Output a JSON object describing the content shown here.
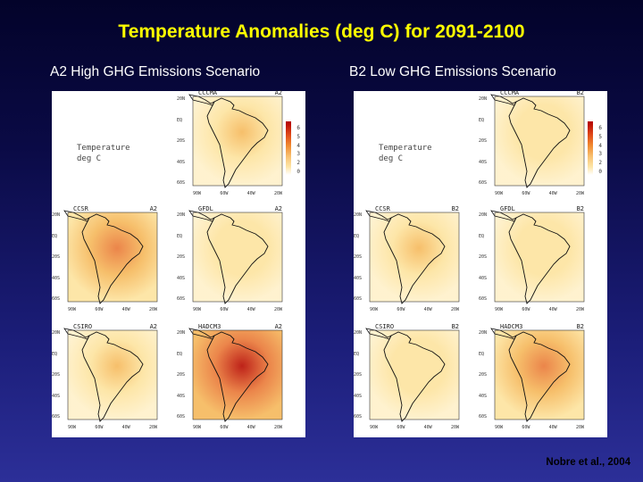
{
  "slide": {
    "title": "Temperature Anomalies (deg C) for 2091-2100",
    "citation": "Nobre et al., 2004"
  },
  "panels": [
    {
      "heading": "A2 High GHG Emissions Scenario",
      "legend_title": "Temperature",
      "legend_units": "deg C",
      "maps": [
        {
          "model": "CCCMA",
          "scenario": "A2",
          "warming": "moderate"
        },
        {
          "model": "CCSR",
          "scenario": "A2",
          "warming": "high"
        },
        {
          "model": "GFDL",
          "scenario": "A2",
          "warming": "low"
        },
        {
          "model": "CSIRO",
          "scenario": "A2",
          "warming": "moderate"
        },
        {
          "model": "HADCM3",
          "scenario": "A2",
          "warming": "very-high"
        }
      ]
    },
    {
      "heading": "B2 Low GHG Emissions Scenario",
      "legend_title": "Temperature",
      "legend_units": "deg C",
      "maps": [
        {
          "model": "CCCMA",
          "scenario": "B2",
          "warming": "low"
        },
        {
          "model": "CCSR",
          "scenario": "B2",
          "warming": "moderate"
        },
        {
          "model": "GFDL",
          "scenario": "B2",
          "warming": "low"
        },
        {
          "model": "CSIRO",
          "scenario": "B2",
          "warming": "low"
        },
        {
          "model": "HADCM3",
          "scenario": "B2",
          "warming": "high"
        }
      ]
    }
  ],
  "colorbar_ticks": [
    "6",
    "5",
    "4",
    "3",
    "2",
    "0"
  ],
  "lat_ticks": [
    "20N",
    "EQ",
    "20S",
    "40S",
    "60S"
  ],
  "lon_ticks": [
    "90W",
    "60W",
    "40W",
    "20W"
  ],
  "colors": {
    "title": "#ffff00",
    "heading": "#ffffff",
    "warming_low": "#fde6a8",
    "warming_moderate": "#f5b860",
    "warming_high": "#e8743a",
    "warming_very_high": "#b30000"
  }
}
